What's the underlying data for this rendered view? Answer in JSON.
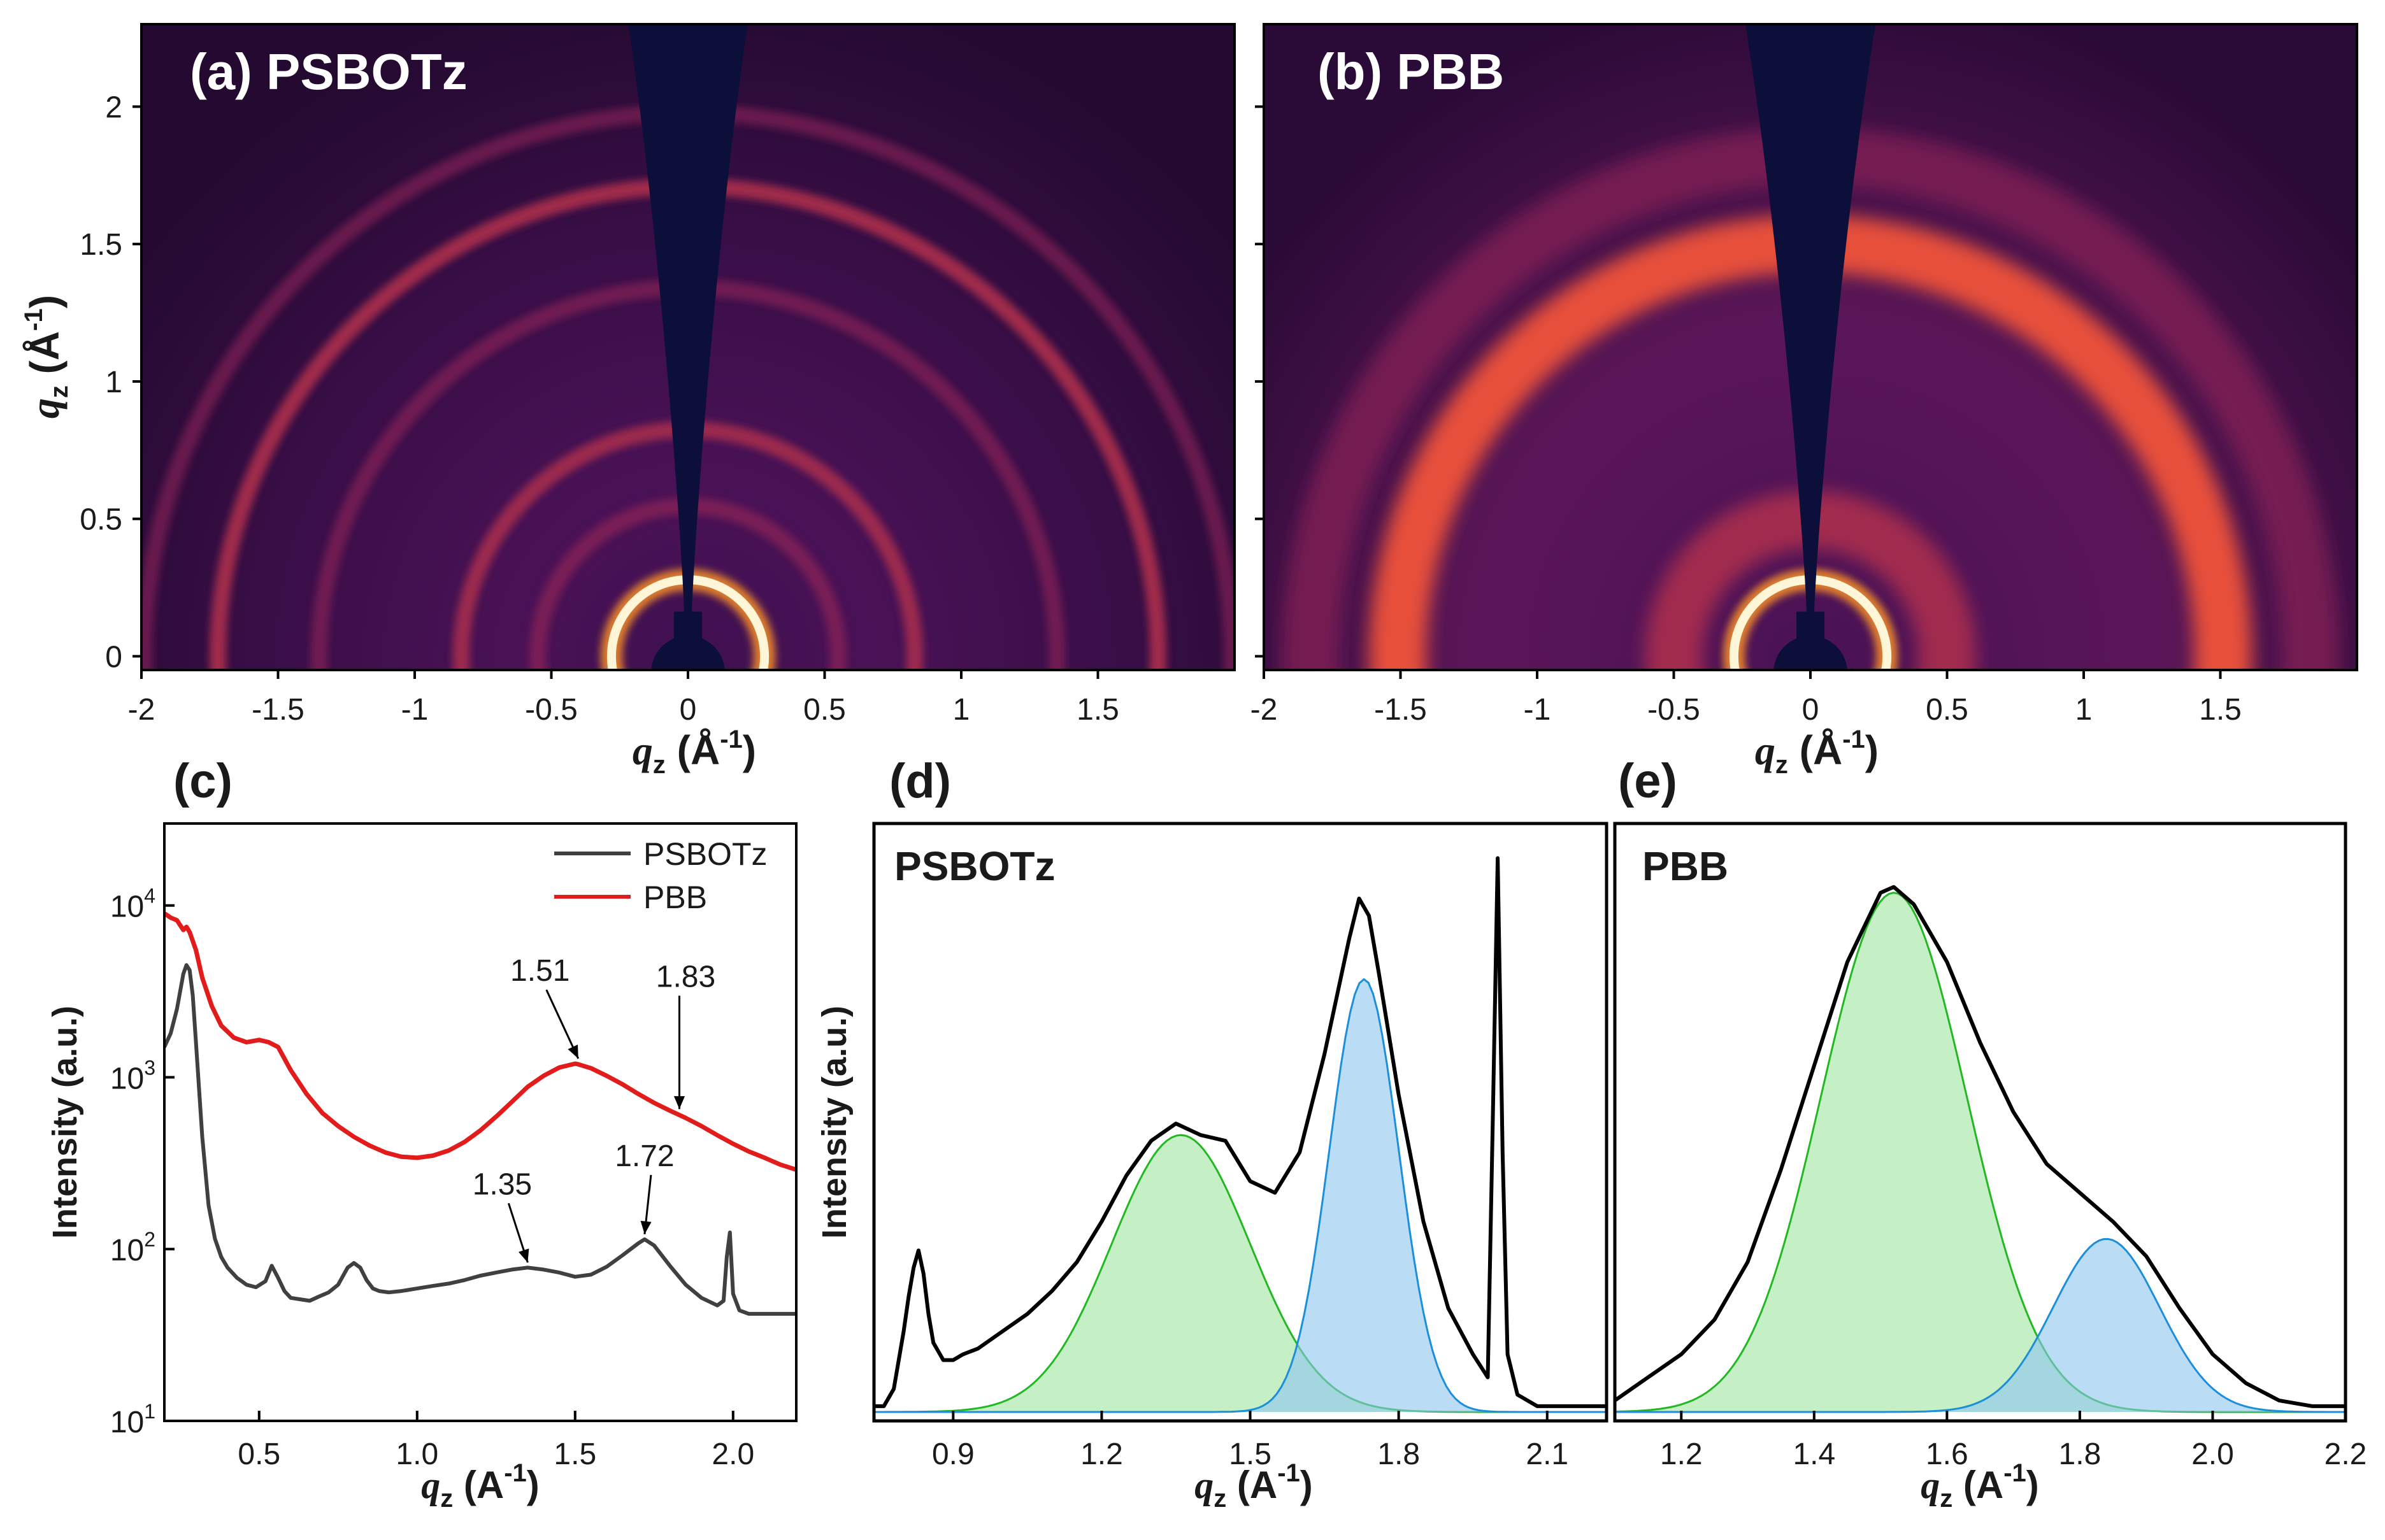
{
  "chart_data": [
    {
      "id": "a",
      "type": "heatmap",
      "panel_label": "(a) PSBOTz",
      "xlabel": "q",
      "xlabel_sub": "z",
      "xlabel_unit": " (Å",
      "xlabel_exp": "-1",
      "xlabel_close": ")",
      "ylabel": "q",
      "ylabel_sub": "z",
      "ylabel_unit": " (Å",
      "ylabel_exp": "-1",
      "ylabel_close": ")",
      "xlim": [
        -2.0,
        2.0
      ],
      "ylim": [
        -0.05,
        2.3
      ],
      "xticks": [
        -2,
        -1.5,
        -1,
        -0.5,
        0,
        0.5,
        1,
        1.5
      ],
      "xtick_labels": [
        "-2",
        "-1.5",
        "-1",
        "-0.5",
        "0",
        "0.5",
        "1",
        "1.5"
      ],
      "yticks": [
        0,
        0.5,
        1,
        1.5,
        2
      ],
      "ytick_labels": [
        "0",
        "0.5",
        "1",
        "1.5",
        "2"
      ],
      "rings": [
        {
          "q": 0.28,
          "intensity": 1.0
        },
        {
          "q": 0.55,
          "intensity": 0.3
        },
        {
          "q": 0.83,
          "intensity": 0.32
        },
        {
          "q": 1.35,
          "intensity": 0.22
        },
        {
          "q": 1.72,
          "intensity": 0.38
        },
        {
          "q": 1.99,
          "intensity": 0.18
        }
      ],
      "colors": {
        "background": "#2a0a33",
        "shadow": "#0c0f3a"
      }
    },
    {
      "id": "b",
      "type": "heatmap",
      "panel_label": "(b) PBB",
      "xlabel": "q",
      "xlabel_sub": "z",
      "xlabel_unit": " (Å",
      "xlabel_exp": "-1",
      "xlabel_close": ")",
      "xlim": [
        -2.0,
        2.0
      ],
      "ylim": [
        -0.05,
        2.3
      ],
      "xticks": [
        -2,
        -1.5,
        -1,
        -0.5,
        0,
        0.5,
        1,
        1.5
      ],
      "xtick_labels": [
        "-2",
        "-1.5",
        "-1",
        "-0.5",
        "0",
        "0.5",
        "1",
        "1.5"
      ],
      "rings": [
        {
          "q": 0.28,
          "intensity": 1.0
        },
        {
          "q": 0.5,
          "intensity": 0.35
        },
        {
          "q": 1.51,
          "intensity": 0.55
        },
        {
          "q": 1.83,
          "intensity": 0.25
        }
      ],
      "colors": {
        "background": "#2a0a33",
        "shadow": "#0c0f3a"
      }
    },
    {
      "id": "c",
      "type": "line",
      "panel_label": "(c)",
      "xlabel": "q",
      "xlabel_sub": "z",
      "xlabel_unit": " (A",
      "xlabel_exp": "-1",
      "xlabel_close": ")",
      "ylabel": "Intensity (a.u.)",
      "yscale": "log",
      "xlim": [
        0.2,
        2.2
      ],
      "ylim": [
        10,
        30000
      ],
      "xticks": [
        0.5,
        1.0,
        1.5,
        2.0
      ],
      "xtick_labels": [
        "0.5",
        "1.0",
        "1.5",
        "2.0"
      ],
      "yticks": [
        10,
        100,
        1000,
        10000
      ],
      "ytick_base": "10",
      "ytick_exps": [
        "1",
        "2",
        "3",
        "4"
      ],
      "legend_position": "top-right",
      "series": [
        {
          "name": "PSBOTz",
          "color": "#404040",
          "x": [
            0.2,
            0.22,
            0.24,
            0.26,
            0.27,
            0.28,
            0.29,
            0.3,
            0.32,
            0.34,
            0.36,
            0.38,
            0.4,
            0.43,
            0.46,
            0.49,
            0.52,
            0.54,
            0.56,
            0.58,
            0.6,
            0.63,
            0.66,
            0.69,
            0.72,
            0.75,
            0.78,
            0.8,
            0.82,
            0.84,
            0.86,
            0.88,
            0.91,
            0.95,
            1.0,
            1.05,
            1.1,
            1.15,
            1.2,
            1.25,
            1.3,
            1.35,
            1.4,
            1.45,
            1.5,
            1.55,
            1.6,
            1.65,
            1.7,
            1.72,
            1.75,
            1.8,
            1.85,
            1.9,
            1.95,
            1.97,
            1.98,
            1.99,
            2.0,
            2.02,
            2.05,
            2.1,
            2.15,
            2.2
          ],
          "y": [
            1500,
            1800,
            2500,
            4000,
            4500,
            4200,
            3000,
            1600,
            450,
            180,
            115,
            90,
            78,
            68,
            62,
            60,
            65,
            80,
            68,
            57,
            52,
            51,
            50,
            53,
            56,
            62,
            78,
            83,
            78,
            66,
            59,
            57,
            56,
            57,
            59,
            61,
            63,
            66,
            70,
            73,
            76,
            78,
            76,
            73,
            69,
            71,
            79,
            92,
            108,
            114,
            105,
            80,
            62,
            52,
            47,
            50,
            90,
            125,
            55,
            44,
            42,
            42,
            42,
            42
          ]
        },
        {
          "name": "PBB",
          "color": "#e21b1b",
          "x": [
            0.2,
            0.22,
            0.24,
            0.26,
            0.27,
            0.28,
            0.3,
            0.32,
            0.35,
            0.38,
            0.42,
            0.46,
            0.5,
            0.53,
            0.56,
            0.6,
            0.65,
            0.7,
            0.75,
            0.8,
            0.85,
            0.9,
            0.95,
            1.0,
            1.05,
            1.1,
            1.15,
            1.2,
            1.25,
            1.3,
            1.35,
            1.4,
            1.45,
            1.5,
            1.51,
            1.55,
            1.6,
            1.65,
            1.7,
            1.75,
            1.8,
            1.85,
            1.9,
            1.95,
            2.0,
            2.05,
            2.1,
            2.15,
            2.2
          ],
          "y": [
            9000,
            8500,
            8200,
            7200,
            7500,
            7000,
            5500,
            3800,
            2600,
            2000,
            1700,
            1600,
            1650,
            1600,
            1500,
            1100,
            800,
            620,
            520,
            450,
            400,
            365,
            345,
            340,
            350,
            375,
            420,
            490,
            590,
            720,
            880,
            1020,
            1140,
            1200,
            1190,
            1130,
            1020,
            910,
            800,
            710,
            640,
            580,
            520,
            460,
            410,
            370,
            340,
            310,
            290
          ]
        }
      ],
      "annotations": [
        {
          "text": "1.51",
          "x": 1.51,
          "y": 1200
        },
        {
          "text": "1.83",
          "x": 1.83,
          "y": 610
        },
        {
          "text": "1.35",
          "x": 1.35,
          "y": 78
        },
        {
          "text": "1.72",
          "x": 1.72,
          "y": 114
        }
      ]
    },
    {
      "id": "d",
      "type": "area",
      "panel_label": "(d)",
      "inner_label": "PSBOTz",
      "xlabel": "q",
      "xlabel_sub": "z",
      "xlabel_unit": " (A",
      "xlabel_exp": "-1",
      "xlabel_close": ")",
      "ylabel": "Intensity (a.u.)",
      "xlim": [
        0.74,
        2.22
      ],
      "ylim": [
        0,
        1.02
      ],
      "xticks": [
        0.9,
        1.2,
        1.5,
        1.8,
        2.1
      ],
      "xtick_labels": [
        "0.9",
        "1.2",
        "1.5",
        "1.8",
        "2.1"
      ],
      "data": {
        "x": [
          0.74,
          0.76,
          0.78,
          0.8,
          0.81,
          0.82,
          0.83,
          0.84,
          0.85,
          0.86,
          0.88,
          0.9,
          0.92,
          0.95,
          1.0,
          1.05,
          1.1,
          1.15,
          1.2,
          1.25,
          1.3,
          1.35,
          1.4,
          1.45,
          1.5,
          1.55,
          1.6,
          1.65,
          1.7,
          1.72,
          1.74,
          1.76,
          1.8,
          1.85,
          1.9,
          1.95,
          1.98,
          1.99,
          2.0,
          2.01,
          2.02,
          2.04,
          2.08,
          2.12,
          2.16,
          2.2,
          2.22
        ],
        "y": [
          0.01,
          0.01,
          0.04,
          0.14,
          0.2,
          0.25,
          0.28,
          0.24,
          0.17,
          0.12,
          0.09,
          0.09,
          0.1,
          0.11,
          0.14,
          0.17,
          0.21,
          0.26,
          0.33,
          0.41,
          0.47,
          0.5,
          0.48,
          0.47,
          0.4,
          0.38,
          0.45,
          0.62,
          0.82,
          0.89,
          0.86,
          0.76,
          0.55,
          0.33,
          0.18,
          0.1,
          0.06,
          0.5,
          0.96,
          0.45,
          0.1,
          0.03,
          0.01,
          0.01,
          0.01,
          0.01,
          0.01
        ]
      },
      "peaks": [
        {
          "center": 1.36,
          "amplitude": 0.48,
          "width": 0.14,
          "fill": "#9ee69e",
          "stroke": "#22b822"
        },
        {
          "center": 1.73,
          "amplitude": 0.75,
          "width": 0.07,
          "fill": "#8cc4ee",
          "stroke": "#1b8edc"
        }
      ]
    },
    {
      "id": "e",
      "type": "area",
      "panel_label": "(e)",
      "inner_label": "PBB",
      "xlabel": "q",
      "xlabel_sub": "z",
      "xlabel_unit": " (A",
      "xlabel_exp": "-1",
      "xlabel_close": ")",
      "xlim": [
        1.1,
        2.2
      ],
      "ylim": [
        0,
        1.02
      ],
      "xticks": [
        1.2,
        1.4,
        1.6,
        1.8,
        2.0,
        2.2
      ],
      "xtick_labels": [
        "1.2",
        "1.4",
        "1.6",
        "1.8",
        "2.0",
        "2.2"
      ],
      "data": {
        "x": [
          1.1,
          1.15,
          1.2,
          1.25,
          1.3,
          1.35,
          1.4,
          1.45,
          1.5,
          1.52,
          1.55,
          1.6,
          1.65,
          1.7,
          1.75,
          1.8,
          1.85,
          1.9,
          1.95,
          2.0,
          2.05,
          2.1,
          2.15,
          2.2
        ],
        "y": [
          0.02,
          0.06,
          0.1,
          0.16,
          0.26,
          0.42,
          0.6,
          0.78,
          0.9,
          0.91,
          0.88,
          0.78,
          0.64,
          0.52,
          0.43,
          0.38,
          0.33,
          0.27,
          0.18,
          0.1,
          0.05,
          0.02,
          0.01,
          0.01
        ]
      },
      "peaks": [
        {
          "center": 1.52,
          "amplitude": 0.9,
          "width": 0.11,
          "fill": "#9ee69e",
          "stroke": "#22b822"
        },
        {
          "center": 1.84,
          "amplitude": 0.3,
          "width": 0.08,
          "fill": "#8cc4ee",
          "stroke": "#1b8edc"
        }
      ]
    }
  ]
}
